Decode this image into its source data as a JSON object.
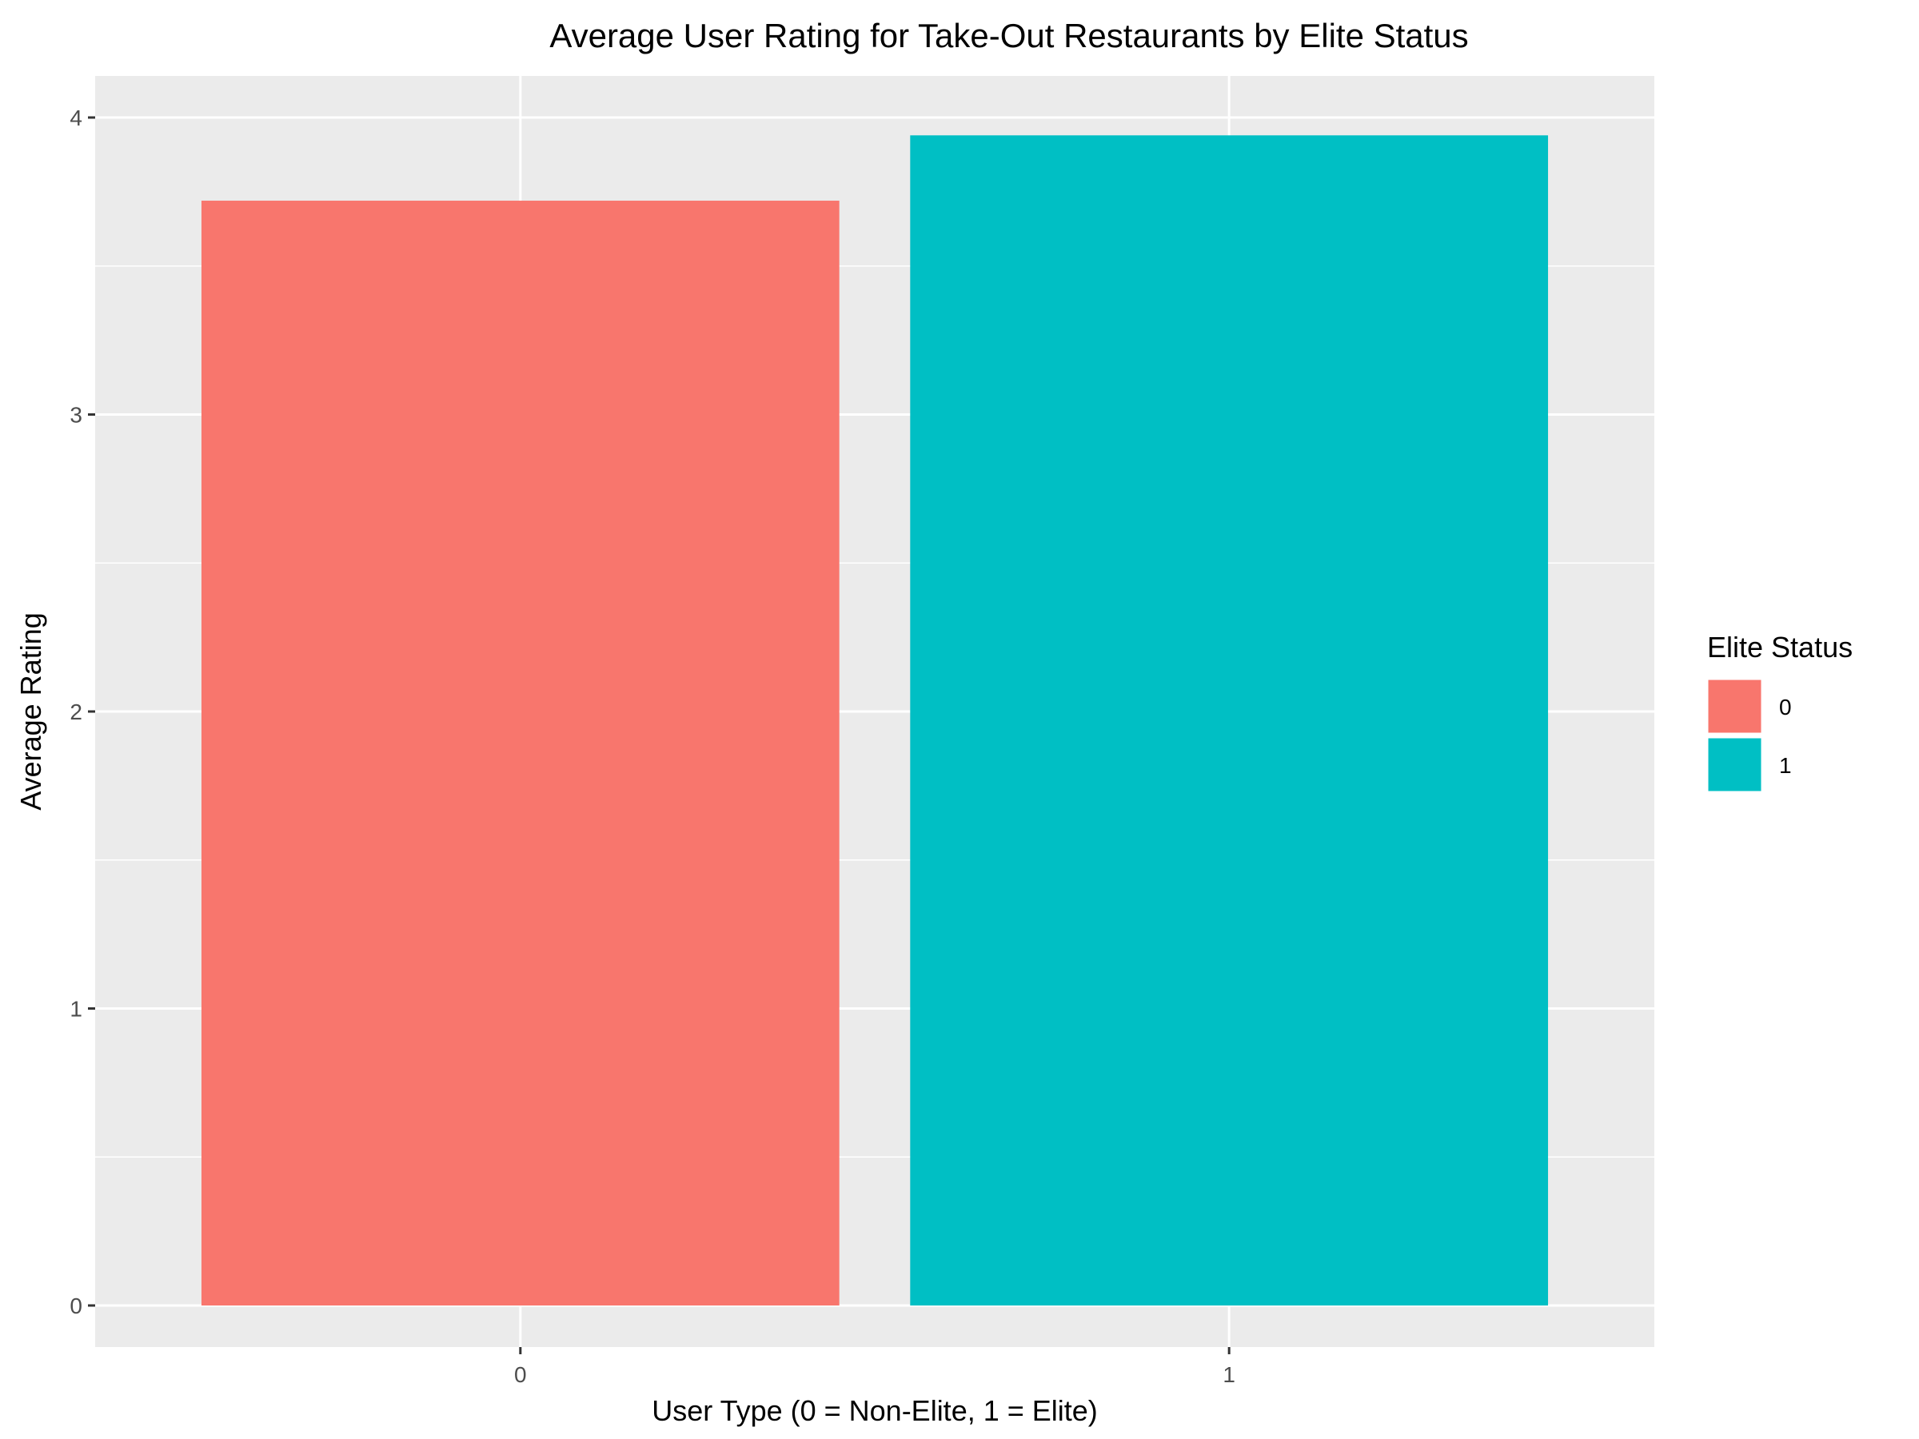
{
  "chart_data": {
    "type": "bar",
    "title": "Average User Rating for Take-Out Restaurants by Elite Status",
    "xlabel": "User Type (0 = Non-Elite, 1 = Elite)",
    "ylabel": "Average Rating",
    "categories": [
      "0",
      "1"
    ],
    "values": [
      3.72,
      3.94
    ],
    "colors": [
      "#F8766D",
      "#00BFC4"
    ],
    "ylim": [
      -0.14,
      4.14
    ],
    "yticks": [
      "0",
      "1",
      "2",
      "3",
      "4"
    ],
    "ytick_values": [
      0,
      1,
      2,
      3,
      4
    ],
    "grid": true,
    "panel_background": "#EBEBEB",
    "legend": {
      "title": "Elite Status",
      "position": "right",
      "entries": [
        "0",
        "1"
      ]
    }
  }
}
